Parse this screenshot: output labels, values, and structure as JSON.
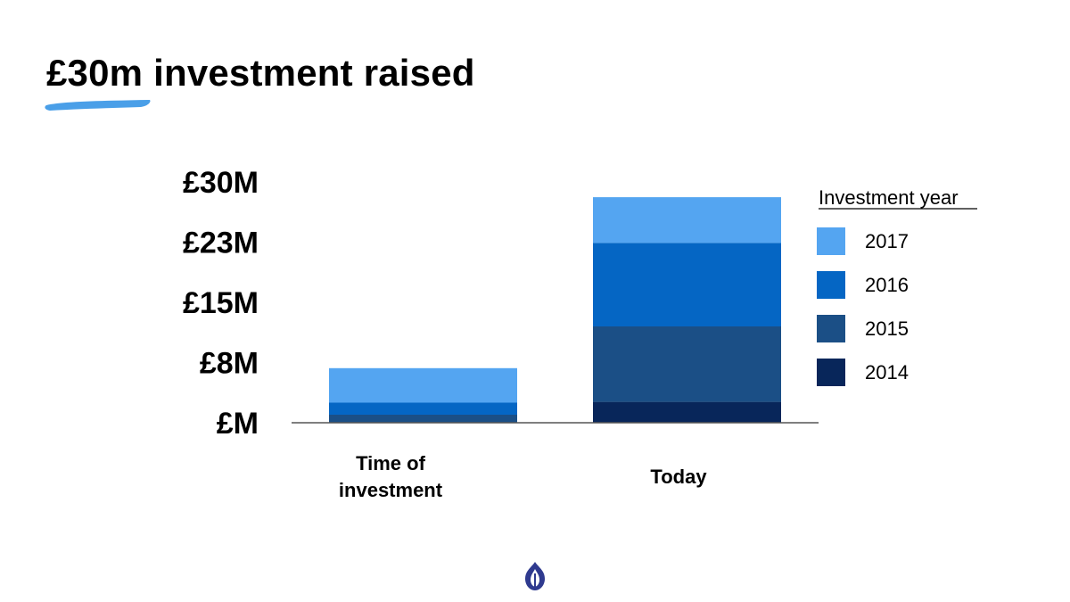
{
  "slide": {
    "title": "£30m investment raised",
    "accent_color": "#4A9FE8"
  },
  "chart_data": {
    "type": "bar",
    "stacked": true,
    "title": "",
    "xlabel": "",
    "ylabel": "",
    "categories": [
      "Time of investment",
      "Today"
    ],
    "y_tick_labels": [
      "£M",
      "£8M",
      "£15M",
      "£23M",
      "£30M"
    ],
    "y_tick_values": [
      0,
      7.5,
      15,
      22.5,
      30
    ],
    "ylim": [
      0,
      30
    ],
    "grid": false,
    "legend": {
      "title": "Investment year",
      "placement": "right"
    },
    "series": [
      {
        "name": "2014",
        "color": "#08265A",
        "values": [
          0,
          2.6
        ]
      },
      {
        "name": "2015",
        "color": "#1B4F86",
        "values": [
          1.0,
          9.4
        ]
      },
      {
        "name": "2016",
        "color": "#0566C4",
        "values": [
          1.5,
          10.4
        ]
      },
      {
        "name": "2017",
        "color": "#54A5F1",
        "values": [
          4.3,
          5.7
        ]
      }
    ]
  },
  "logo": {
    "icon": "flame-logo-icon",
    "color": "#2F3A8F"
  }
}
